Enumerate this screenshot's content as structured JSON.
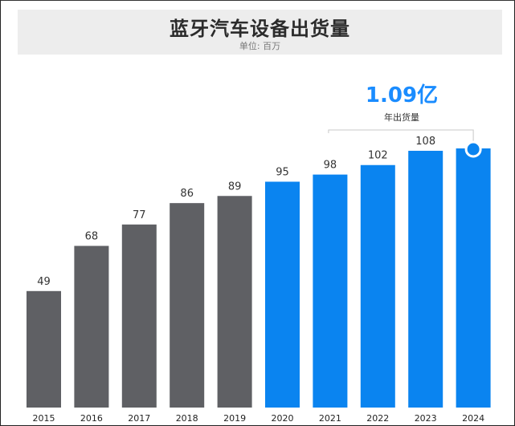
{
  "title": "蓝牙汽车设备出货量",
  "subtitle": "单位: 百万",
  "callout": {
    "value": "1.09亿",
    "label": "年出货量"
  },
  "colors": {
    "gray": "#5f6064",
    "blue": "#0a84f0",
    "accent": "#1a8cff"
  },
  "chart_data": {
    "type": "bar",
    "title": "蓝牙汽车设备出货量",
    "subtitle": "单位: 百万",
    "categories": [
      "2015",
      "2016",
      "2017",
      "2018",
      "2019",
      "2020",
      "2021",
      "2022",
      "2023",
      "2024"
    ],
    "values": [
      49,
      68,
      77,
      86,
      89,
      95,
      98,
      102,
      108,
      109
    ],
    "data_labels": [
      "49",
      "68",
      "77",
      "86",
      "89",
      "95",
      "98",
      "102",
      "108",
      ""
    ],
    "bar_colors": [
      "gray",
      "gray",
      "gray",
      "gray",
      "gray",
      "blue",
      "blue",
      "blue",
      "blue",
      "blue"
    ],
    "ylim": [
      0,
      115
    ],
    "grid": false,
    "highlight_index": 9
  }
}
